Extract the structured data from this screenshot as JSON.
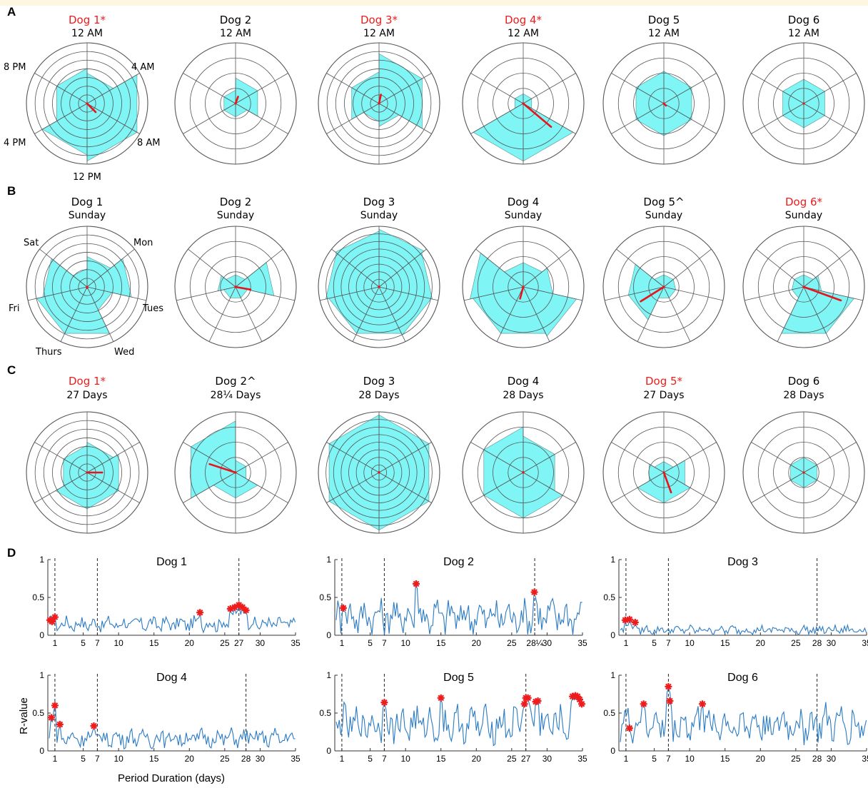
{
  "colors": {
    "fill": "#7ff5f5",
    "arrow": "#e8141c",
    "line": "#2b7bc4",
    "sig": "#ee1c1c",
    "grid": "#555555"
  },
  "panels": {
    "A": {
      "letter": "A",
      "labels": [
        "12 AM",
        "4 AM",
        "8 AM",
        "12 PM",
        "4 PM",
        "8 PM"
      ]
    },
    "B": {
      "letter": "B",
      "labels": [
        "Sunday",
        "Mon",
        "Tues",
        "Wed",
        "Thurs",
        "Fri",
        "Sat"
      ]
    },
    "C": {
      "letter": "C"
    },
    "D": {
      "letter": "D",
      "ylabel": "R-value",
      "xlabel": "Period Duration (days)"
    }
  },
  "chart_data": [
    {
      "type": "polar",
      "panel": "A",
      "bins": [
        "12 AM",
        "4 AM",
        "8 AM",
        "12 PM",
        "4 PM",
        "8 PM"
      ],
      "plots": [
        {
          "title": "Dog 1*",
          "subtitle": "12 AM",
          "significant": true,
          "rings": 7,
          "values": [
            0.5,
            0.95,
            0.95,
            0.85,
            0.58,
            0.58
          ],
          "vector": {
            "angle_deg": 135,
            "length": 0.2
          }
        },
        {
          "title": "Dog 2",
          "subtitle": "12 AM",
          "significant": false,
          "rings": 4,
          "values": [
            0.42,
            0.42,
            0.22,
            0.22,
            0.22,
            0.22
          ],
          "vector": {
            "angle_deg": 20,
            "length": 0.12
          }
        },
        {
          "title": "Dog 3*",
          "subtitle": "12 AM",
          "significant": true,
          "rings": 7,
          "values": [
            0.82,
            0.82,
            0.38,
            0.3,
            0.52,
            0.52
          ],
          "vector": {
            "angle_deg": 12,
            "length": 0.15
          }
        },
        {
          "title": "Dog 4*",
          "subtitle": "12 AM",
          "significant": true,
          "rings": 4,
          "values": [
            0.16,
            0.16,
            0.95,
            0.95,
            0.16,
            0.16
          ],
          "vector": {
            "angle_deg": 130,
            "length": 0.6
          }
        },
        {
          "title": "Dog 5",
          "subtitle": "12 AM",
          "significant": false,
          "rings": 4,
          "values": [
            0.53,
            0.53,
            0.53,
            0.53,
            0.53,
            0.53
          ],
          "vector": {
            "angle_deg": 135,
            "length": 0.05
          }
        },
        {
          "title": "Dog 6",
          "subtitle": "12 AM",
          "significant": false,
          "rings": 4,
          "values": [
            0.4,
            0.4,
            0.4,
            0.4,
            0.4,
            0.4
          ],
          "vector": {
            "angle_deg": 0,
            "length": 0
          }
        }
      ]
    },
    {
      "type": "polar",
      "panel": "B",
      "bins": [
        "Sunday",
        "Mon",
        "Tues",
        "Wed",
        "Thurs",
        "Fri",
        "Sat"
      ],
      "plots": [
        {
          "title": "Dog 1",
          "subtitle": "Sunday",
          "significant": false,
          "rings": 7,
          "values": [
            0.5,
            0.75,
            0.42,
            0.85,
            0.85,
            0.75,
            0.3
          ],
          "vector": {
            "angle_deg": 180,
            "length": 0.02
          }
        },
        {
          "title": "Dog 2",
          "subtitle": "Sunday",
          "significant": false,
          "rings": 4,
          "values": [
            0.2,
            0.65,
            0.2,
            0.2,
            0.2,
            0.3,
            0.2
          ],
          "vector": {
            "angle_deg": 100,
            "length": 0.25
          }
        },
        {
          "title": "Dog 3",
          "subtitle": "Sunday",
          "significant": false,
          "rings": 8,
          "values": [
            0.95,
            0.9,
            0.88,
            0.85,
            0.85,
            0.9,
            0.92
          ],
          "vector": {
            "angle_deg": 0,
            "length": 0.01
          }
        },
        {
          "title": "Dog 4",
          "subtitle": "Sunday",
          "significant": false,
          "rings": 4,
          "values": [
            0.4,
            0.5,
            0.9,
            0.85,
            0.85,
            0.9,
            0.4
          ],
          "vector": {
            "angle_deg": 195,
            "length": 0.2
          }
        },
        {
          "title": "Dog 5^",
          "subtitle": "Sunday",
          "significant": false,
          "rings": 4,
          "values": [
            0.2,
            0.2,
            0.2,
            0.2,
            0.6,
            0.6,
            0.2
          ],
          "vector": {
            "angle_deg": 238,
            "length": 0.45
          }
        },
        {
          "title": "Dog 6*",
          "subtitle": "Sunday",
          "significant": true,
          "rings": 4,
          "values": [
            0.2,
            0.3,
            0.85,
            0.85,
            0.2,
            0.2,
            0.2
          ],
          "vector": {
            "angle_deg": 110,
            "length": 0.65
          }
        }
      ]
    },
    {
      "type": "polar",
      "panel": "C",
      "plots": [
        {
          "title": "Dog 1*",
          "subtitle": "27 Days",
          "significant": true,
          "rings": 7,
          "values": [
            0.5,
            0.6,
            0.6,
            0.6,
            0.45,
            0.45
          ],
          "vector": {
            "angle_deg": 90,
            "length": 0.25
          }
        },
        {
          "title": "Dog 2^",
          "subtitle": "28¼ Days",
          "significant": false,
          "rings": 4,
          "values": [
            0.2,
            0.2,
            0.42,
            0.42,
            0.85,
            0.85
          ],
          "vector": {
            "angle_deg": 288,
            "length": 0.45
          }
        },
        {
          "title": "Dog 3",
          "subtitle": "28 Days",
          "significant": false,
          "rings": 8,
          "values": [
            0.95,
            0.95,
            0.95,
            0.95,
            0.95,
            0.95
          ],
          "vector": {
            "angle_deg": 0,
            "length": 0.01
          }
        },
        {
          "title": "Dog 4",
          "subtitle": "28 Days",
          "significant": false,
          "rings": 4,
          "values": [
            0.6,
            0.6,
            0.75,
            0.75,
            0.75,
            0.75
          ],
          "vector": {
            "angle_deg": 0,
            "length": 0.01
          }
        },
        {
          "title": "Dog 5*",
          "subtitle": "27 Days",
          "significant": true,
          "rings": 4,
          "values": [
            0.18,
            0.4,
            0.5,
            0.5,
            0.28,
            0.18
          ],
          "vector": {
            "angle_deg": 160,
            "length": 0.35
          }
        },
        {
          "title": "Dog 6",
          "subtitle": "28 Days",
          "significant": false,
          "rings": 4,
          "values": [
            0.25,
            0.25,
            0.25,
            0.25,
            0.25,
            0.25
          ],
          "vector": {
            "angle_deg": 0,
            "length": 0
          }
        }
      ]
    },
    {
      "type": "line",
      "panel": "D",
      "ylim": [
        0,
        1
      ],
      "yticks": [
        0,
        0.5,
        1
      ],
      "xlim": [
        0,
        35
      ],
      "ylabel": "R-value",
      "xlabel": "Period Duration (days)",
      "plots": [
        {
          "title": "Dog 1",
          "base": 0.15,
          "amp": 0.08,
          "ref_lines": [
            1,
            7,
            27
          ],
          "xticks": [
            "1",
            "5",
            "7",
            "10",
            "15",
            "20",
            "25",
            "27",
            "30",
            "35"
          ],
          "xtick_vals": [
            1,
            5,
            7,
            10,
            15,
            20,
            25,
            27,
            30,
            35
          ],
          "peaks": [
            [
              0.3,
              0.2
            ],
            [
              0.6,
              0.18
            ],
            [
              1.0,
              0.24
            ],
            [
              21.5,
              0.3
            ],
            [
              25.8,
              0.35
            ],
            [
              26.4,
              0.37
            ],
            [
              27.0,
              0.4
            ],
            [
              27.5,
              0.37
            ],
            [
              28.0,
              0.33
            ]
          ]
        },
        {
          "title": "Dog 2",
          "base": 0.25,
          "amp": 0.2,
          "ref_lines": [
            1,
            7,
            28.25
          ],
          "xticks": [
            "1",
            "5",
            "7",
            "10",
            "15",
            "20",
            "25",
            "28¼",
            "30",
            "35"
          ],
          "xtick_vals": [
            1,
            5,
            7,
            10,
            15,
            20,
            25,
            28.25,
            30,
            35
          ],
          "peaks": [
            [
              1.2,
              0.36
            ],
            [
              11.5,
              0.68
            ],
            [
              28.2,
              0.57
            ]
          ]
        },
        {
          "title": "Dog 3",
          "base": 0.07,
          "amp": 0.05,
          "ref_lines": [
            1,
            7,
            28
          ],
          "xticks": [
            "1",
            "5",
            "7",
            "10",
            "15",
            "20",
            "25",
            "28",
            "30",
            "35"
          ],
          "xtick_vals": [
            1,
            5,
            7,
            10,
            15,
            20,
            25,
            28,
            30,
            35
          ],
          "peaks": [
            [
              0.9,
              0.2
            ],
            [
              1.5,
              0.21
            ],
            [
              2.3,
              0.17
            ]
          ]
        },
        {
          "title": "Dog 4",
          "base": 0.17,
          "amp": 0.1,
          "ref_lines": [
            1,
            7,
            28
          ],
          "xticks": [
            "1",
            "5",
            "7",
            "10",
            "15",
            "20",
            "25",
            "28",
            "30",
            "35"
          ],
          "xtick_vals": [
            1,
            5,
            7,
            10,
            15,
            20,
            25,
            28,
            30,
            35
          ],
          "peaks": [
            [
              0.5,
              0.44
            ],
            [
              1.0,
              0.6
            ],
            [
              1.7,
              0.35
            ],
            [
              6.5,
              0.33
            ]
          ]
        },
        {
          "title": "Dog 5",
          "base": 0.35,
          "amp": 0.2,
          "ref_lines": [
            1,
            7,
            27
          ],
          "xticks": [
            "1",
            "5",
            "7",
            "10",
            "15",
            "20",
            "25",
            "27",
            "30",
            "35"
          ],
          "xtick_vals": [
            1,
            5,
            7,
            10,
            15,
            20,
            25,
            27,
            30,
            35
          ],
          "peaks": [
            [
              7.0,
              0.64
            ],
            [
              15.0,
              0.7
            ],
            [
              26.8,
              0.62
            ],
            [
              27.0,
              0.7
            ],
            [
              27.3,
              0.7
            ],
            [
              28.4,
              0.65
            ],
            [
              28.7,
              0.66
            ],
            [
              33.6,
              0.72
            ],
            [
              34.0,
              0.73
            ],
            [
              34.3,
              0.72
            ],
            [
              34.6,
              0.68
            ],
            [
              34.9,
              0.62
            ]
          ]
        },
        {
          "title": "Dog 6",
          "base": 0.35,
          "amp": 0.2,
          "ref_lines": [
            1,
            7,
            28
          ],
          "xticks": [
            "1",
            "5",
            "7",
            "10",
            "15",
            "20",
            "25",
            "28",
            "30",
            "35"
          ],
          "xtick_vals": [
            1,
            5,
            7,
            10,
            15,
            20,
            25,
            28,
            30,
            35
          ],
          "peaks": [
            [
              1.5,
              0.3
            ],
            [
              3.5,
              0.62
            ],
            [
              7.0,
              0.85
            ],
            [
              7.2,
              0.66
            ],
            [
              11.8,
              0.62
            ]
          ]
        }
      ]
    }
  ]
}
